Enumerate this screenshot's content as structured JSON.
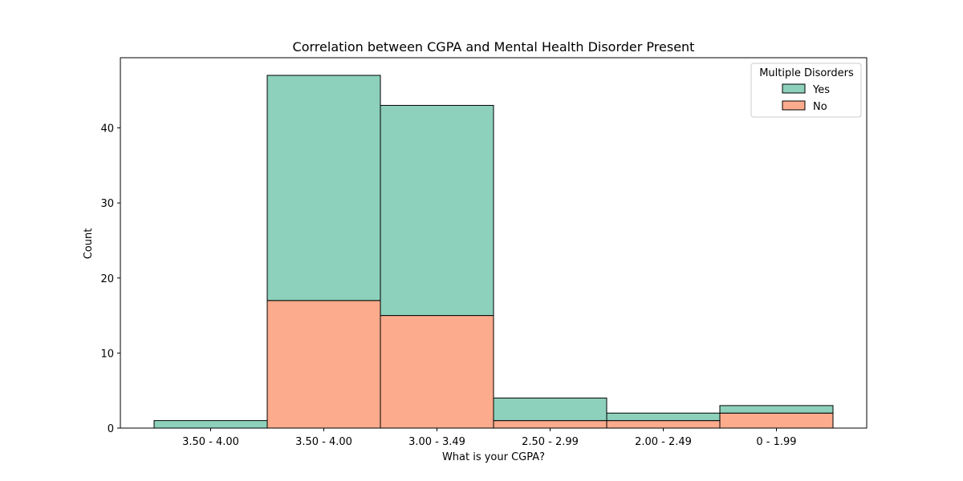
{
  "chart_data": {
    "type": "bar",
    "stacked": true,
    "title": "Correlation between CGPA and Mental Health Disorder Present",
    "xlabel": "What is your CGPA?",
    "ylabel": "Count",
    "categories": [
      "3.50 - 4.00",
      "3.50 - 4.00",
      "3.00 - 3.49",
      "2.50 - 2.99",
      "2.00 - 2.49",
      "0 - 1.99"
    ],
    "ylim": [
      0,
      49.35
    ],
    "yticks": [
      0,
      10,
      20,
      30,
      40
    ],
    "series": [
      {
        "name": "No",
        "color": "#fcab8d",
        "values": [
          0,
          17,
          15,
          1,
          1,
          2
        ]
      },
      {
        "name": "Yes",
        "color": "#8dd1bc",
        "values": [
          1,
          30,
          28,
          3,
          1,
          1
        ]
      }
    ],
    "legend": {
      "title": "Multiple Disorders",
      "placement": "top-right",
      "entries": [
        "Yes",
        "No"
      ]
    },
    "grid": false
  }
}
